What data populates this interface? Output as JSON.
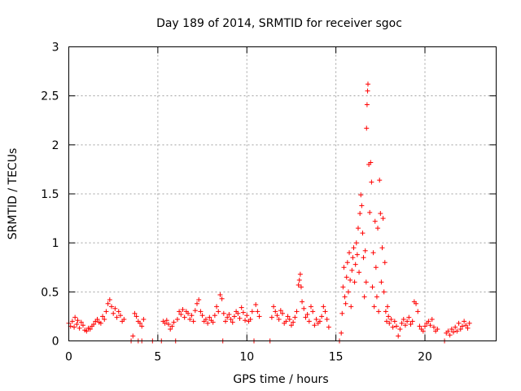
{
  "chart_data": {
    "type": "scatter",
    "title": "Day 189 of 2014, SRMTID for receiver sgoc",
    "xlabel": "GPS time / hours",
    "ylabel": "SRMTID / TECUs",
    "xlim": [
      0,
      24
    ],
    "ylim": [
      0,
      3
    ],
    "xticks": [
      0,
      5,
      10,
      15,
      20
    ],
    "yticks": [
      0,
      0.5,
      1,
      1.5,
      2,
      2.5,
      3
    ],
    "xtick_labels": [
      "0",
      "5",
      "10",
      "15",
      "20"
    ],
    "ytick_labels": [
      "0",
      "0.5",
      "1",
      "1.5",
      "2",
      "2.5",
      "3"
    ],
    "grid": true,
    "marker": "+",
    "series": [
      {
        "name": "SRMTID",
        "color": "#ff0000",
        "points": [
          [
            0.0,
            0.18
          ],
          [
            0.1,
            0.15
          ],
          [
            0.2,
            0.2
          ],
          [
            0.3,
            0.14
          ],
          [
            0.35,
            0.24
          ],
          [
            0.45,
            0.17
          ],
          [
            0.5,
            0.21
          ],
          [
            0.6,
            0.13
          ],
          [
            0.7,
            0.19
          ],
          [
            0.8,
            0.16
          ],
          [
            0.9,
            0.11
          ],
          [
            1.0,
            0.1
          ],
          [
            1.1,
            0.13
          ],
          [
            1.2,
            0.12
          ],
          [
            1.3,
            0.15
          ],
          [
            1.4,
            0.17
          ],
          [
            1.5,
            0.2
          ],
          [
            1.6,
            0.22
          ],
          [
            1.7,
            0.19
          ],
          [
            1.8,
            0.18
          ],
          [
            1.9,
            0.25
          ],
          [
            2.0,
            0.22
          ],
          [
            2.1,
            0.3
          ],
          [
            2.2,
            0.38
          ],
          [
            2.3,
            0.42
          ],
          [
            2.4,
            0.35
          ],
          [
            2.5,
            0.28
          ],
          [
            2.6,
            0.33
          ],
          [
            2.7,
            0.24
          ],
          [
            2.8,
            0.3
          ],
          [
            2.9,
            0.26
          ],
          [
            3.0,
            0.2
          ],
          [
            3.1,
            0.22
          ],
          [
            3.5,
            0.0
          ],
          [
            3.6,
            0.05
          ],
          [
            3.7,
            0.28
          ],
          [
            3.8,
            0.25
          ],
          [
            3.9,
            0.2
          ],
          [
            4.0,
            0.18
          ],
          [
            4.1,
            0.15
          ],
          [
            4.2,
            0.22
          ],
          [
            3.9,
            0.0
          ],
          [
            4.1,
            0.0
          ],
          [
            4.7,
            0.0
          ],
          [
            5.2,
            0.0
          ],
          [
            5.3,
            0.2
          ],
          [
            5.4,
            0.18
          ],
          [
            5.5,
            0.21
          ],
          [
            5.6,
            0.17
          ],
          [
            5.7,
            0.12
          ],
          [
            5.8,
            0.15
          ],
          [
            5.9,
            0.19
          ],
          [
            6.0,
            0.0
          ],
          [
            6.1,
            0.22
          ],
          [
            6.2,
            0.3
          ],
          [
            6.3,
            0.27
          ],
          [
            6.4,
            0.32
          ],
          [
            6.5,
            0.24
          ],
          [
            6.6,
            0.3
          ],
          [
            6.7,
            0.28
          ],
          [
            6.8,
            0.22
          ],
          [
            6.9,
            0.26
          ],
          [
            7.0,
            0.2
          ],
          [
            7.1,
            0.31
          ],
          [
            7.2,
            0.38
          ],
          [
            7.3,
            0.42
          ],
          [
            7.4,
            0.3
          ],
          [
            7.5,
            0.26
          ],
          [
            7.6,
            0.2
          ],
          [
            7.7,
            0.22
          ],
          [
            7.8,
            0.18
          ],
          [
            7.9,
            0.24
          ],
          [
            8.0,
            0.21
          ],
          [
            8.1,
            0.19
          ],
          [
            8.2,
            0.26
          ],
          [
            8.3,
            0.35
          ],
          [
            8.4,
            0.3
          ],
          [
            8.5,
            0.47
          ],
          [
            8.6,
            0.43
          ],
          [
            8.65,
            0.0
          ],
          [
            8.7,
            0.28
          ],
          [
            8.8,
            0.2
          ],
          [
            8.9,
            0.24
          ],
          [
            9.0,
            0.27
          ],
          [
            9.1,
            0.22
          ],
          [
            9.2,
            0.19
          ],
          [
            9.3,
            0.25
          ],
          [
            9.4,
            0.3
          ],
          [
            9.5,
            0.28
          ],
          [
            9.6,
            0.23
          ],
          [
            9.7,
            0.34
          ],
          [
            9.8,
            0.29
          ],
          [
            9.9,
            0.21
          ],
          [
            10.0,
            0.26
          ],
          [
            10.1,
            0.2
          ],
          [
            10.2,
            0.22
          ],
          [
            10.3,
            0.3
          ],
          [
            10.4,
            0.0
          ],
          [
            10.5,
            0.37
          ],
          [
            10.6,
            0.3
          ],
          [
            10.7,
            0.25
          ],
          [
            11.3,
            0.0
          ],
          [
            11.4,
            0.24
          ],
          [
            11.5,
            0.35
          ],
          [
            11.6,
            0.3
          ],
          [
            11.7,
            0.26
          ],
          [
            11.8,
            0.22
          ],
          [
            11.9,
            0.31
          ],
          [
            12.0,
            0.28
          ],
          [
            12.1,
            0.18
          ],
          [
            12.2,
            0.2
          ],
          [
            12.3,
            0.25
          ],
          [
            12.4,
            0.22
          ],
          [
            12.5,
            0.16
          ],
          [
            12.6,
            0.19
          ],
          [
            12.7,
            0.24
          ],
          [
            12.8,
            0.3
          ],
          [
            12.9,
            0.57
          ],
          [
            12.95,
            0.62
          ],
          [
            13.0,
            0.68
          ],
          [
            13.05,
            0.55
          ],
          [
            13.1,
            0.4
          ],
          [
            13.2,
            0.33
          ],
          [
            13.3,
            0.24
          ],
          [
            13.4,
            0.27
          ],
          [
            13.5,
            0.2
          ],
          [
            13.6,
            0.35
          ],
          [
            13.7,
            0.3
          ],
          [
            13.8,
            0.16
          ],
          [
            13.9,
            0.22
          ],
          [
            14.0,
            0.18
          ],
          [
            14.1,
            0.2
          ],
          [
            14.2,
            0.25
          ],
          [
            14.3,
            0.35
          ],
          [
            14.4,
            0.3
          ],
          [
            14.5,
            0.22
          ],
          [
            14.6,
            0.14
          ],
          [
            15.2,
            0.0
          ],
          [
            15.3,
            0.08
          ],
          [
            15.35,
            0.28
          ],
          [
            15.4,
            0.55
          ],
          [
            15.45,
            0.75
          ],
          [
            15.5,
            0.45
          ],
          [
            15.55,
            0.38
          ],
          [
            15.6,
            0.65
          ],
          [
            15.65,
            0.8
          ],
          [
            15.7,
            0.5
          ],
          [
            15.75,
            0.9
          ],
          [
            15.8,
            0.62
          ],
          [
            15.85,
            0.35
          ],
          [
            15.9,
            0.72
          ],
          [
            15.95,
            0.85
          ],
          [
            16.0,
            0.95
          ],
          [
            16.05,
            0.6
          ],
          [
            16.1,
            0.78
          ],
          [
            16.15,
            1.0
          ],
          [
            16.2,
            0.88
          ],
          [
            16.25,
            1.15
          ],
          [
            16.3,
            0.7
          ],
          [
            16.35,
            1.3
          ],
          [
            16.4,
            1.49
          ],
          [
            16.45,
            1.38
          ],
          [
            16.5,
            1.1
          ],
          [
            16.55,
            0.85
          ],
          [
            16.6,
            0.45
          ],
          [
            16.65,
            0.92
          ],
          [
            16.7,
            0.6
          ],
          [
            16.72,
            2.17
          ],
          [
            16.75,
            2.41
          ],
          [
            16.78,
            2.55
          ],
          [
            16.8,
            2.62
          ],
          [
            16.85,
            1.8
          ],
          [
            16.9,
            1.31
          ],
          [
            16.95,
            1.82
          ],
          [
            17.0,
            1.62
          ],
          [
            17.05,
            0.55
          ],
          [
            17.1,
            0.9
          ],
          [
            17.15,
            0.35
          ],
          [
            17.2,
            1.22
          ],
          [
            17.25,
            0.75
          ],
          [
            17.3,
            0.45
          ],
          [
            17.35,
            1.15
          ],
          [
            17.4,
            0.3
          ],
          [
            17.45,
            1.64
          ],
          [
            17.5,
            1.3
          ],
          [
            17.55,
            0.6
          ],
          [
            17.6,
            0.95
          ],
          [
            17.65,
            1.25
          ],
          [
            17.7,
            0.5
          ],
          [
            17.75,
            0.8
          ],
          [
            17.8,
            0.3
          ],
          [
            17.85,
            0.2
          ],
          [
            17.9,
            0.35
          ],
          [
            17.95,
            0.25
          ],
          [
            18.0,
            0.18
          ],
          [
            18.1,
            0.22
          ],
          [
            18.2,
            0.14
          ],
          [
            18.3,
            0.2
          ],
          [
            18.4,
            0.15
          ],
          [
            18.5,
            0.05
          ],
          [
            18.6,
            0.12
          ],
          [
            18.7,
            0.18
          ],
          [
            18.8,
            0.22
          ],
          [
            18.9,
            0.16
          ],
          [
            19.0,
            0.2
          ],
          [
            19.1,
            0.24
          ],
          [
            19.2,
            0.17
          ],
          [
            19.3,
            0.2
          ],
          [
            19.4,
            0.4
          ],
          [
            19.5,
            0.38
          ],
          [
            19.6,
            0.3
          ],
          [
            19.7,
            0.15
          ],
          [
            19.8,
            0.12
          ],
          [
            19.9,
            0.1
          ],
          [
            20.0,
            0.15
          ],
          [
            20.1,
            0.18
          ],
          [
            20.2,
            0.2
          ],
          [
            20.3,
            0.16
          ],
          [
            20.4,
            0.22
          ],
          [
            20.5,
            0.14
          ],
          [
            20.6,
            0.1
          ],
          [
            20.7,
            0.12
          ],
          [
            21.1,
            0.0
          ],
          [
            21.2,
            0.08
          ],
          [
            21.3,
            0.1
          ],
          [
            21.4,
            0.06
          ],
          [
            21.5,
            0.12
          ],
          [
            21.6,
            0.09
          ],
          [
            21.7,
            0.14
          ],
          [
            21.8,
            0.1
          ],
          [
            21.9,
            0.18
          ],
          [
            22.0,
            0.12
          ],
          [
            22.1,
            0.15
          ],
          [
            22.2,
            0.2
          ],
          [
            22.3,
            0.16
          ],
          [
            22.4,
            0.13
          ],
          [
            22.5,
            0.18
          ]
        ]
      }
    ]
  }
}
